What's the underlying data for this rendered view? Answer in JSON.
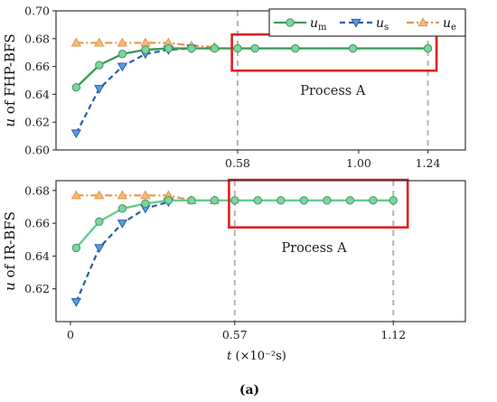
{
  "figure_label": "(a)",
  "x_axis_label": {
    "symbol": "t",
    "unit": "(×10⁻²s)"
  },
  "colors": {
    "m": "#3a9a5a",
    "s": "#2a5caa",
    "e": "#e8944a",
    "m_fill": "#7fd3a0",
    "s_fill": "#5a9ae0",
    "e_fill": "#f5b87a",
    "box": "#e11e1e",
    "dash": "#b5b5b5"
  },
  "legend": [
    {
      "key": "m",
      "base": "u",
      "sub": "m"
    },
    {
      "key": "s",
      "base": "u",
      "sub": "s"
    },
    {
      "key": "e",
      "base": "u",
      "sub": "e"
    }
  ],
  "chart_data": [
    {
      "type": "line",
      "ylabel": "u of FHP-BFS",
      "ylim": [
        0.6,
        0.7
      ],
      "xlim": [
        -0.05,
        1.37
      ],
      "yticks": [
        0.6,
        0.62,
        0.64,
        0.66,
        0.68,
        0.7
      ],
      "xticks": [
        {
          "v": 0.58,
          "label": "0.58"
        },
        {
          "v": 1.0,
          "label": "1.00"
        },
        {
          "v": 1.24,
          "label": "1.24"
        }
      ],
      "annotation": "Process A",
      "process_box": [
        0.56,
        1.27,
        0.657,
        0.683
      ],
      "vlines": [
        0.58,
        1.24
      ],
      "series": [
        {
          "name": "um",
          "x": [
            0.02,
            0.1,
            0.18,
            0.26,
            0.34,
            0.42,
            0.5,
            0.58,
            0.64,
            0.78,
            0.98,
            1.24
          ],
          "y": [
            0.645,
            0.661,
            0.669,
            0.672,
            0.673,
            0.673,
            0.673,
            0.673,
            0.673,
            0.673,
            0.673,
            0.673
          ]
        },
        {
          "name": "us",
          "x": [
            0.02,
            0.1,
            0.18,
            0.26,
            0.34,
            0.42
          ],
          "y": [
            0.612,
            0.644,
            0.66,
            0.669,
            0.672,
            0.673
          ]
        },
        {
          "name": "ue",
          "x": [
            0.02,
            0.1,
            0.18,
            0.26,
            0.34,
            0.42,
            0.5
          ],
          "y": [
            0.677,
            0.677,
            0.677,
            0.677,
            0.677,
            0.675,
            0.674
          ]
        }
      ]
    },
    {
      "type": "line",
      "ylabel": "u of IR-BFS",
      "ylim": [
        0.6,
        0.686
      ],
      "xlim": [
        -0.05,
        1.37
      ],
      "yticks": [
        0.62,
        0.64,
        0.66,
        0.68
      ],
      "xticks": [
        {
          "v": 0.0,
          "label": "0"
        },
        {
          "v": 0.57,
          "label": "0.57"
        },
        {
          "v": 1.12,
          "label": "1.12"
        }
      ],
      "annotation": "Process A",
      "process_box": [
        0.55,
        1.17,
        0.6575,
        0.6865
      ],
      "vlines": [
        0.57,
        1.12
      ],
      "series": [
        {
          "name": "um",
          "x": [
            0.02,
            0.1,
            0.18,
            0.26,
            0.34,
            0.42,
            0.5,
            0.57,
            0.65,
            0.73,
            0.81,
            0.89,
            0.97,
            1.05,
            1.12
          ],
          "y": [
            0.645,
            0.661,
            0.669,
            0.672,
            0.674,
            0.674,
            0.674,
            0.674,
            0.674,
            0.674,
            0.674,
            0.674,
            0.674,
            0.674,
            0.674
          ]
        },
        {
          "name": "us",
          "x": [
            0.02,
            0.1,
            0.18,
            0.26,
            0.34
          ],
          "y": [
            0.612,
            0.645,
            0.66,
            0.669,
            0.673
          ]
        },
        {
          "name": "ue",
          "x": [
            0.02,
            0.1,
            0.18,
            0.26,
            0.34,
            0.42,
            0.5
          ],
          "y": [
            0.677,
            0.677,
            0.677,
            0.677,
            0.677,
            0.674,
            0.674
          ]
        }
      ]
    }
  ]
}
